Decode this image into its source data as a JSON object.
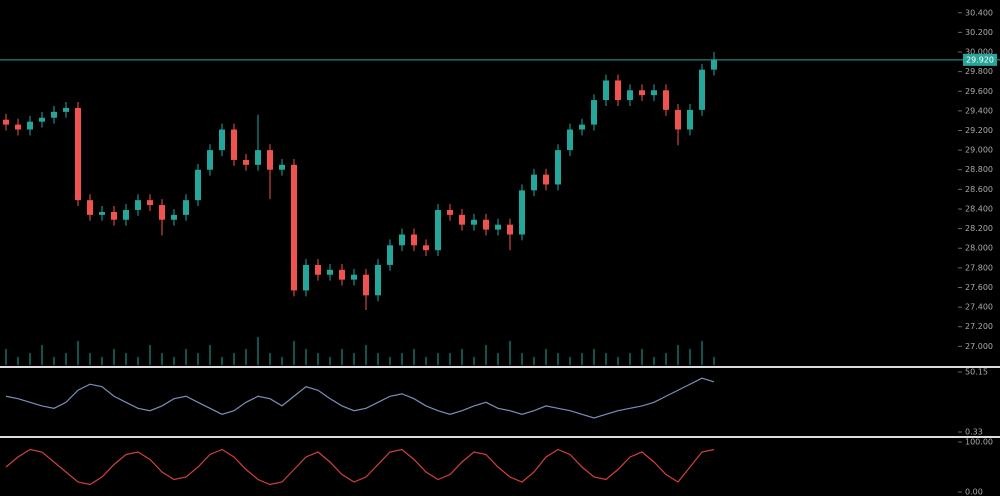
{
  "chart_data": [
    {
      "type": "candlestick",
      "up_color": "#26a69a",
      "down_color": "#ef5350",
      "open": [
        29.31,
        29.26,
        29.21,
        29.29,
        29.33,
        29.39,
        29.43,
        28.49,
        28.34,
        28.37,
        28.29,
        28.39,
        28.49,
        28.44,
        28.29,
        28.34,
        28.49,
        28.8,
        29.0,
        29.21,
        28.9,
        28.85,
        29.0,
        28.8,
        28.85,
        27.57,
        27.83,
        27.73,
        27.78,
        27.68,
        27.73,
        27.52,
        27.83,
        28.03,
        28.14,
        28.03,
        27.98,
        28.39,
        28.34,
        28.24,
        28.29,
        28.19,
        28.24,
        28.14,
        28.59,
        28.75,
        28.65,
        29.0,
        29.21,
        29.26,
        29.51,
        29.71,
        29.51,
        29.61,
        29.56,
        29.61,
        29.41,
        29.21,
        29.41,
        29.82
      ],
      "high": [
        29.37,
        29.32,
        29.35,
        29.39,
        29.45,
        29.49,
        29.49,
        28.55,
        28.43,
        28.43,
        28.45,
        28.55,
        28.55,
        28.5,
        28.4,
        28.55,
        28.86,
        29.06,
        29.27,
        29.27,
        28.96,
        29.36,
        29.06,
        28.91,
        28.91,
        27.89,
        27.89,
        27.84,
        27.84,
        27.79,
        27.79,
        27.89,
        28.09,
        28.2,
        28.2,
        28.09,
        28.45,
        28.45,
        28.4,
        28.35,
        28.35,
        28.3,
        28.3,
        28.65,
        28.81,
        28.81,
        29.06,
        29.27,
        29.32,
        29.57,
        29.77,
        29.77,
        29.67,
        29.67,
        29.67,
        29.67,
        29.47,
        29.47,
        29.88,
        30.0
      ],
      "low": [
        29.2,
        29.15,
        29.15,
        29.23,
        29.27,
        29.33,
        28.43,
        28.28,
        28.28,
        28.23,
        28.23,
        28.33,
        28.38,
        28.13,
        28.23,
        28.28,
        28.43,
        28.74,
        28.94,
        28.84,
        28.79,
        28.79,
        28.5,
        28.74,
        27.51,
        27.51,
        27.67,
        27.67,
        27.62,
        27.62,
        27.37,
        27.46,
        27.77,
        27.97,
        27.97,
        27.92,
        27.92,
        28.28,
        28.18,
        28.18,
        28.13,
        28.13,
        27.98,
        28.08,
        28.53,
        28.59,
        28.59,
        28.94,
        29.15,
        29.2,
        29.45,
        29.45,
        29.45,
        29.5,
        29.5,
        29.35,
        29.05,
        29.15,
        29.35,
        29.76
      ],
      "close": [
        29.26,
        29.21,
        29.29,
        29.33,
        29.39,
        29.43,
        28.49,
        28.34,
        28.37,
        28.29,
        28.39,
        28.49,
        28.44,
        28.29,
        28.34,
        28.49,
        28.8,
        29.0,
        29.21,
        28.9,
        28.85,
        29.0,
        28.8,
        28.85,
        27.57,
        27.83,
        27.73,
        27.78,
        27.68,
        27.73,
        27.52,
        27.83,
        28.03,
        28.14,
        28.03,
        27.98,
        28.39,
        28.34,
        28.24,
        28.29,
        28.19,
        28.24,
        28.14,
        28.59,
        28.75,
        28.65,
        29.0,
        29.21,
        29.26,
        29.51,
        29.71,
        29.51,
        29.61,
        29.56,
        29.61,
        29.41,
        29.21,
        29.41,
        29.82,
        29.92
      ],
      "volume": [
        4,
        2,
        3,
        5,
        2,
        3,
        6,
        3,
        2,
        4,
        3,
        2,
        5,
        3,
        2,
        4,
        3,
        5,
        2,
        3,
        4,
        7,
        3,
        2,
        6,
        4,
        3,
        2,
        4,
        3,
        5,
        3,
        2,
        3,
        4,
        2,
        3,
        3,
        4,
        2,
        5,
        3,
        6,
        3,
        2,
        4,
        3,
        2,
        3,
        4,
        3,
        2,
        3,
        4,
        2,
        3,
        5,
        4,
        6,
        2
      ],
      "volume_lim": [
        0,
        10
      ],
      "volume_color": "#26a69a",
      "ylim": [
        26.81,
        30.53
      ],
      "yticks": [
        {
          "value": 30.4,
          "label": "30.400"
        },
        {
          "value": 30.2,
          "label": "30.200"
        },
        {
          "value": 30.0,
          "label": "30.000"
        },
        {
          "value": 29.8,
          "label": "29.800"
        },
        {
          "value": 29.6,
          "label": "29.600"
        },
        {
          "value": 29.4,
          "label": "29.400"
        },
        {
          "value": 29.2,
          "label": "29.200"
        },
        {
          "value": 29.0,
          "label": "29.000"
        },
        {
          "value": 28.8,
          "label": "28.800"
        },
        {
          "value": 28.6,
          "label": "28.600"
        },
        {
          "value": 28.4,
          "label": "28.400"
        },
        {
          "value": 28.2,
          "label": "28.200"
        },
        {
          "value": 28.0,
          "label": "28.000"
        },
        {
          "value": 27.8,
          "label": "27.800"
        },
        {
          "value": 27.6,
          "label": "27.600"
        },
        {
          "value": 27.4,
          "label": "27.400"
        },
        {
          "value": 27.2,
          "label": "27.200"
        },
        {
          "value": 27.0,
          "label": "27.000"
        }
      ],
      "last_price": {
        "value": 29.92,
        "label": "29.920"
      },
      "last_color": "#26a69a"
    },
    {
      "type": "line",
      "color": "#7a8fb8",
      "values": [
        30,
        28,
        25,
        22,
        20,
        25,
        35,
        40,
        38,
        30,
        25,
        20,
        18,
        22,
        28,
        30,
        25,
        20,
        15,
        18,
        25,
        30,
        28,
        22,
        30,
        38,
        35,
        28,
        22,
        18,
        20,
        25,
        30,
        32,
        28,
        22,
        18,
        15,
        18,
        22,
        25,
        20,
        18,
        15,
        18,
        22,
        20,
        18,
        15,
        12,
        15,
        18,
        20,
        22,
        25,
        30,
        35,
        40,
        45,
        42
      ],
      "ylim": [
        0.33,
        50.15
      ],
      "yticks": [
        50.15,
        0.33
      ]
    },
    {
      "type": "line",
      "color": "#d04040",
      "values": [
        50,
        70,
        85,
        80,
        60,
        40,
        20,
        15,
        30,
        55,
        75,
        80,
        65,
        40,
        25,
        30,
        50,
        75,
        85,
        70,
        45,
        25,
        15,
        20,
        45,
        70,
        80,
        60,
        35,
        20,
        30,
        55,
        80,
        85,
        65,
        40,
        25,
        35,
        60,
        80,
        75,
        50,
        30,
        20,
        40,
        70,
        85,
        75,
        50,
        30,
        25,
        45,
        70,
        80,
        60,
        35,
        20,
        50,
        80,
        85
      ],
      "ylim": [
        0,
        100
      ],
      "yticks": [
        {
          "value": 100,
          "label": "100.00"
        },
        {
          "value": 0,
          "label": "0.00"
        }
      ]
    }
  ]
}
